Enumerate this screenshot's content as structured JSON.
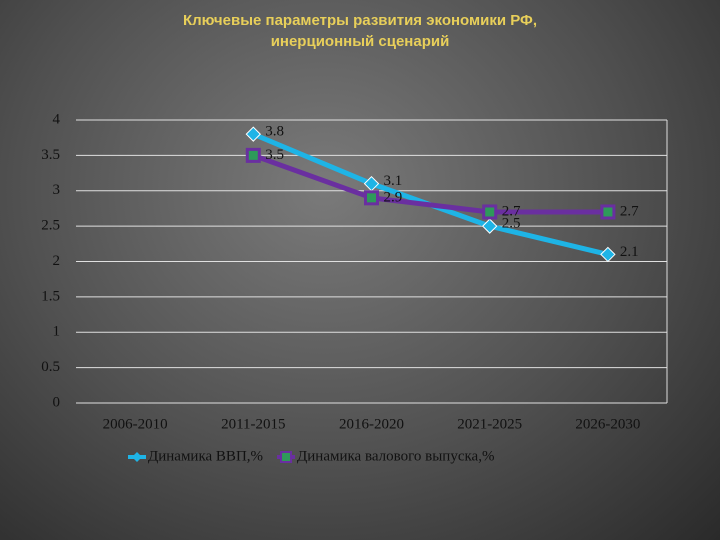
{
  "chart_data": {
    "type": "line",
    "title": "Ключевые параметры развития экономики РФ,\nинерционный сценарий",
    "categories": [
      "2006-2010",
      "2011-2015",
      "2016-2020",
      "2021-2025",
      "2026-2030"
    ],
    "series": [
      {
        "name": "Динамика ВВП,%",
        "color": "#1eb4e6",
        "values": [
          null,
          3.8,
          3.1,
          2.5,
          2.1
        ]
      },
      {
        "name": "Динамика валового выпуска,%",
        "color": "#6a2fa0",
        "values": [
          null,
          3.5,
          2.9,
          2.7,
          2.7
        ]
      }
    ],
    "ylim": [
      0,
      4
    ],
    "yticks": [
      0,
      0.5,
      1,
      1.5,
      2,
      2.5,
      3,
      3.5,
      4
    ],
    "grid": true,
    "legend": "bottom"
  }
}
